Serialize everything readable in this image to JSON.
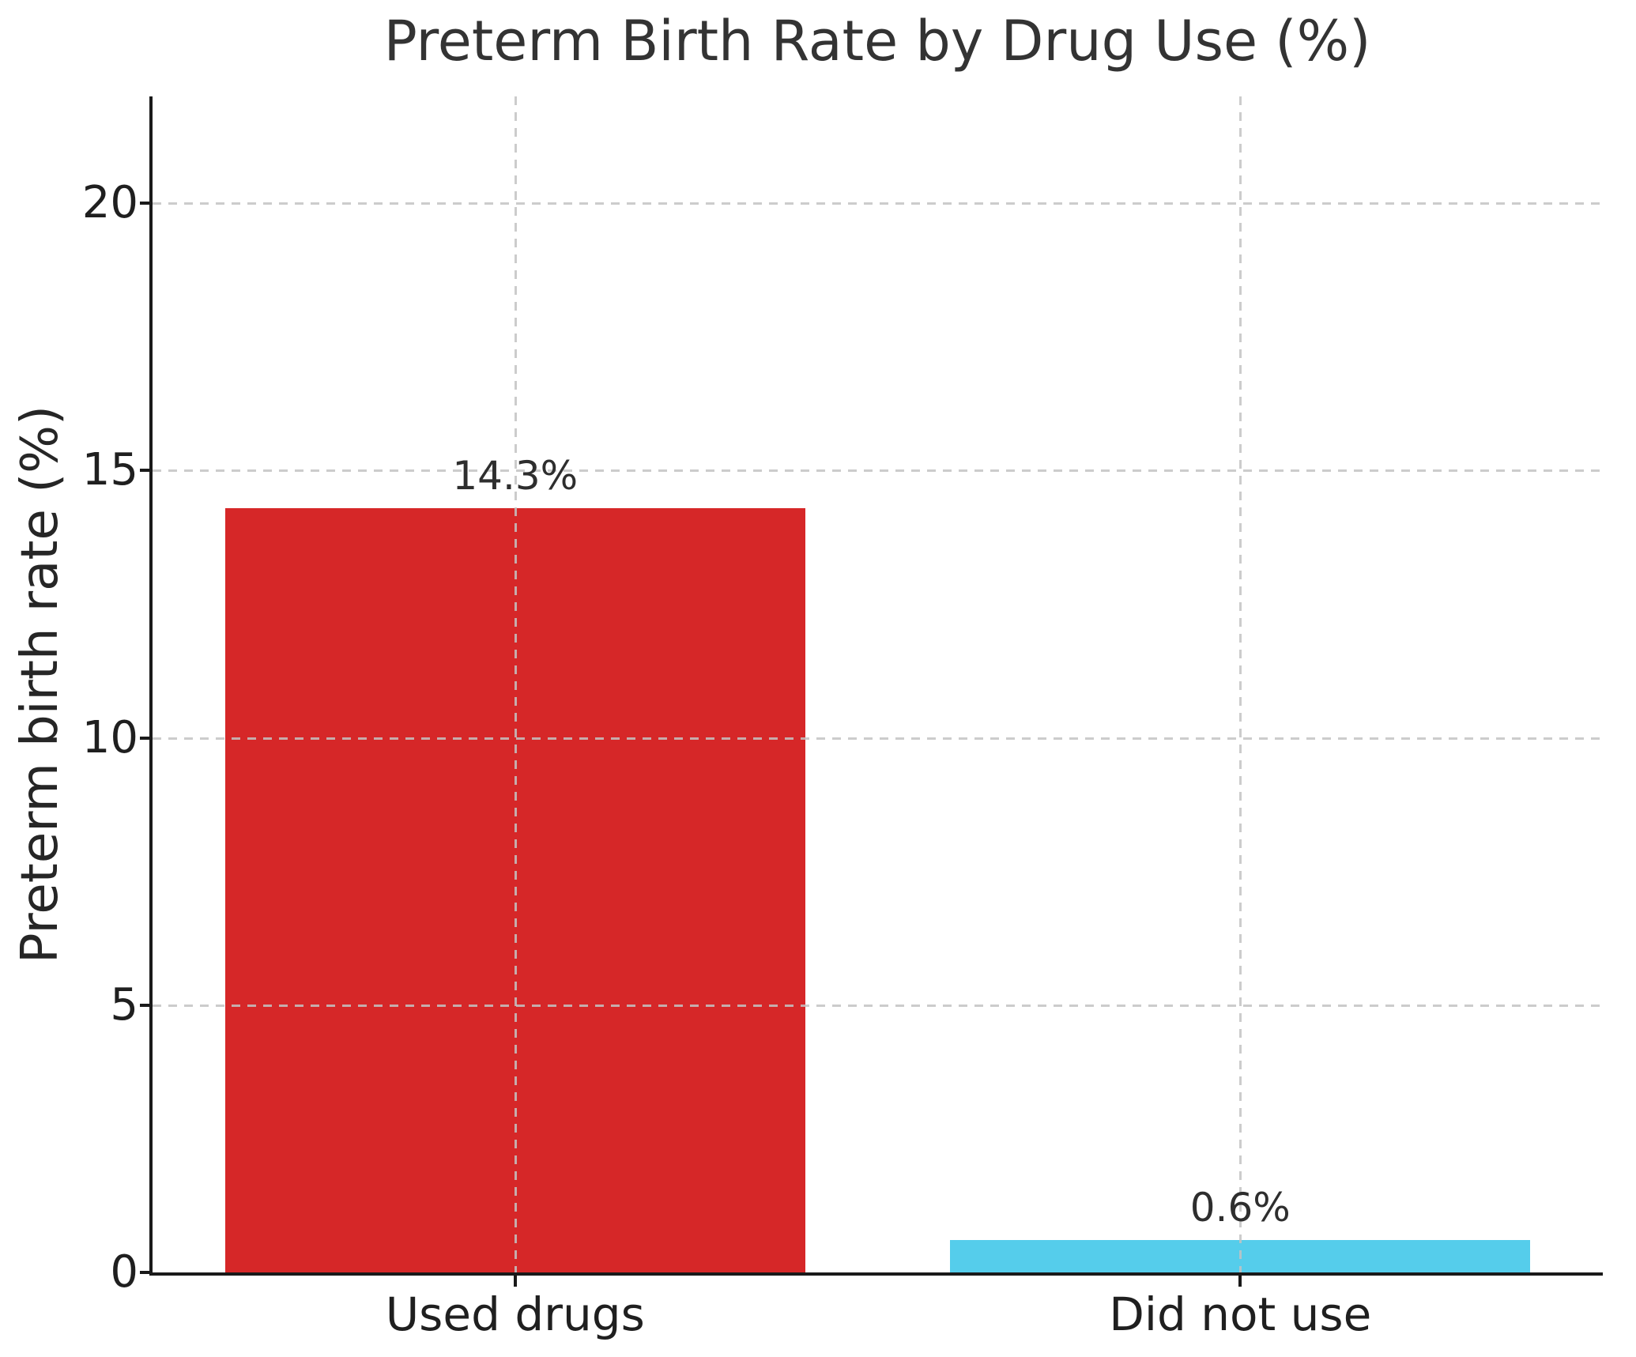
{
  "chart_data": {
    "type": "bar",
    "title": "Preterm Birth Rate by Drug Use (%)",
    "ylabel": "Preterm birth rate (%)",
    "categories": [
      "Used drugs",
      "Did not use"
    ],
    "values": [
      14.3,
      0.6
    ],
    "value_labels": [
      "14.3%",
      "0.6%"
    ],
    "bar_colors": [
      "#d62728",
      "#55cdeb"
    ],
    "ylim": [
      0,
      22
    ],
    "yticks": [
      0,
      5,
      10,
      15,
      20
    ],
    "bar_width_fraction": 0.8,
    "grid": {
      "visible": true,
      "style": "dashed",
      "color": "#c9c9c9",
      "axes": "both",
      "drawn_above_bars": true
    },
    "spines": {
      "left": true,
      "bottom": true,
      "top": false,
      "right": false
    },
    "legend": "none",
    "text_color": "#1f1f1f",
    "title_color": "#333333",
    "background_color": "#ffffff"
  }
}
